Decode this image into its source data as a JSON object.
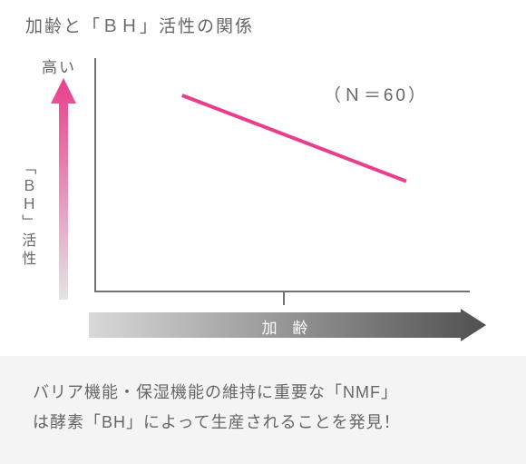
{
  "title": "加齢と「ＢＨ」活性の関係",
  "chart": {
    "type": "line",
    "y_top_label": "高い",
    "y_axis_label": "「ＢＨ」活性",
    "x_axis_label": "加 齢",
    "n_label": "（Ｎ＝60）",
    "axis_color": "#727272",
    "trend_line": {
      "x1_pct": 23,
      "y1_pct": 16,
      "x2_pct": 83,
      "y2_pct": 53,
      "stroke": "#e83e8c",
      "stroke_width": 4
    },
    "y_arrow_gradient": {
      "top": "#e83e8c",
      "bottom": "#e4e4e4"
    },
    "x_arrow_gradient": {
      "left": "#d9d9d9",
      "right": "#505050"
    },
    "tick_position_pct": 50
  },
  "caption": {
    "line1": "バリア機能・保湿機能の維持に重要な「NMF」",
    "line2": "は酵素「BH」によって生産されることを発見！",
    "background": "#f4f4f4",
    "text_color": "#666666"
  }
}
